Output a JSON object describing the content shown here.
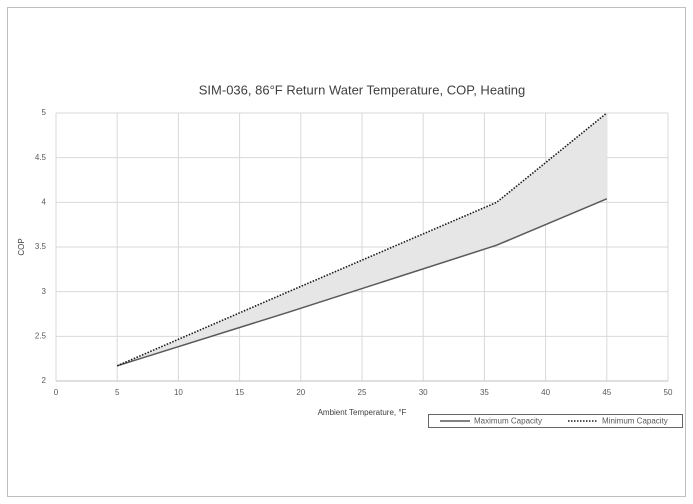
{
  "chart_data": {
    "type": "line",
    "title": "SIM-036, 86°F Return Water Temperature, COP, Heating",
    "x_label": "Ambient Temperature, °F",
    "y_label": "COP",
    "x": [
      5,
      19,
      36,
      45
    ],
    "series": [
      {
        "name": "Maximum Capacity",
        "color": "#595959",
        "dash": "solid",
        "values": [
          2.17,
          2.77,
          3.52,
          4.04
        ]
      },
      {
        "name": "Minimum Capacity",
        "color": "#1a1a1a",
        "dash": "dotted",
        "values": [
          2.17,
          3.0,
          4.0,
          5.0
        ]
      }
    ],
    "fill_between": true,
    "fill_color": "#e6e6e6",
    "xlim": [
      0,
      50
    ],
    "xticks": [
      0,
      5,
      10,
      15,
      20,
      25,
      30,
      35,
      40,
      45,
      50
    ],
    "ylim": [
      2,
      5
    ],
    "yticks": [
      2,
      2.5,
      3,
      3.5,
      4,
      4.5,
      5
    ],
    "grid": true,
    "legend": "bottom right"
  }
}
